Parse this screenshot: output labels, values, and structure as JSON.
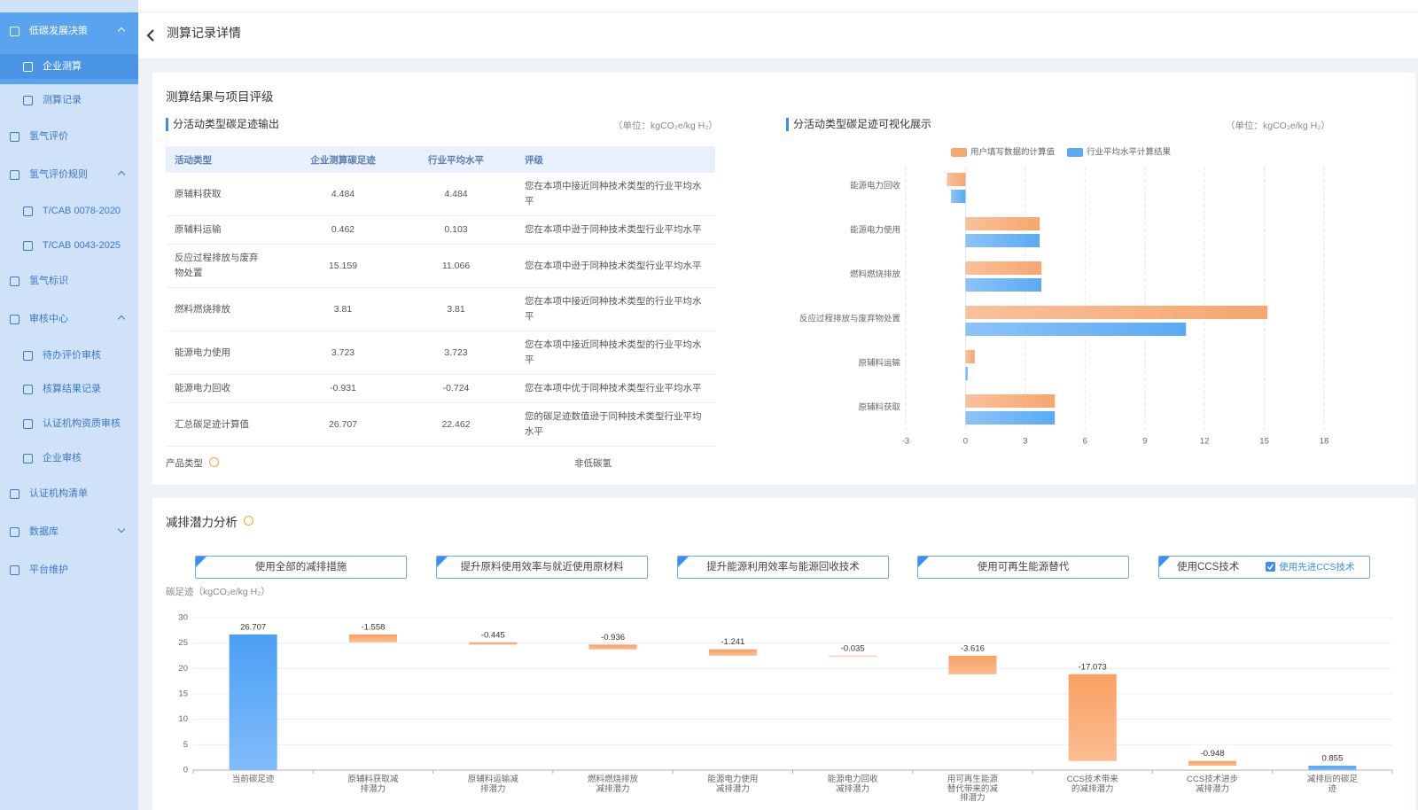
{
  "sidebar": {
    "items": [
      "低碳发展决策",
      "企业测算",
      "测算记录",
      "氢气评价",
      "氢气评价规则",
      "T/CAB 0078-2020",
      "T/CAB 0043-2025",
      "氢气标识",
      "审核中心",
      "待办评价审核",
      "核算结果记录",
      "认证机构资质审核",
      "企业审核",
      "认证机构清单",
      "数据库",
      "平台维护"
    ]
  },
  "header": {
    "title": "测算记录详情"
  },
  "results": {
    "title": "测算结果与项目评级",
    "table": {
      "title": "分活动类型碳足迹输出",
      "unit": "（单位：kgCO₂e/kg H₂）",
      "headers": [
        "活动类型",
        "企业测算碳足迹",
        "行业平均水平",
        "评级"
      ],
      "rows": [
        [
          "原辅料获取",
          4.484,
          4.484,
          "您在本项中接近同种技术类型的行业平均水平"
        ],
        [
          "原辅料运输",
          0.462,
          0.103,
          "您在本项中逊于同种技术类型行业平均水平"
        ],
        [
          "反应过程排放与废弃物处置",
          15.159,
          11.066,
          "您在本项中逊于同种技术类型行业平均水平"
        ],
        [
          "燃料燃烧排放",
          3.81,
          3.81,
          "您在本项中接近同种技术类型的行业平均水平"
        ],
        [
          "能源电力使用",
          3.723,
          3.723,
          "您在本项中接近同种技术类型的行业平均水平"
        ],
        [
          "能源电力回收",
          -0.931,
          -0.724,
          "您在本项中优于同种技术类型行业平均水平"
        ],
        [
          "汇总碳足迹计算值",
          26.707,
          22.462,
          "您的碳足迹数值逊于同种技术类型行业平均水平"
        ]
      ]
    },
    "product_type": {
      "label": "产品类型",
      "value": "非低碳氢"
    }
  },
  "reduction": {
    "title": "减排潜力分析",
    "buttons": [
      "使用全部的减排措施",
      "提升原料使用效率与就近使用原材料",
      "提升能源利用效率与能源回收技术",
      "使用可再生能源替代",
      "使用CCS技术"
    ],
    "checkbox": "使用先进CCS技术"
  },
  "chart_data": [
    {
      "type": "bar",
      "orientation": "horizontal",
      "title": "分活动类型碳足迹可视化展示",
      "unit": "（单位：kgCO₂e/kg H₂）",
      "categories": [
        "能源电力回收",
        "能源电力使用",
        "燃料燃烧排放",
        "反应过程排放与废弃物处置",
        "原辅料运输",
        "原辅料获取"
      ],
      "series": [
        {
          "name": "用户填写数据的计算值",
          "color": "#f7a66f",
          "values": [
            -0.931,
            3.723,
            3.81,
            15.159,
            0.462,
            4.484
          ]
        },
        {
          "name": "行业平均水平计算结果",
          "color": "#5aaaf5",
          "values": [
            -0.724,
            3.723,
            3.81,
            11.066,
            0.103,
            4.484
          ]
        }
      ],
      "xlim": [
        -3,
        18
      ],
      "xticks": [
        -3,
        0,
        3,
        6,
        9,
        12,
        15,
        18
      ],
      "grid": true,
      "legend": "top"
    },
    {
      "type": "waterfall",
      "y_label": "碳足迹（kgCO₂e/kg H₂）",
      "categories": [
        "当前碳足迹",
        "原辅料获取减排潜力",
        "原辅料运输减排潜力",
        "燃料燃烧排放减排潜力",
        "能源电力使用减排潜力",
        "能源电力回收减排潜力",
        "用可再生能源替代带来的减排潜力",
        "CCS技术带来的减排潜力",
        "CCS技术进步减排潜力",
        "减排后的碳足迹"
      ],
      "values": [
        26.707,
        -1.558,
        -0.445,
        -0.936,
        -1.241,
        -0.035,
        -3.616,
        -17.073,
        -0.948,
        0.855
      ],
      "total_color": "#4b9ff6",
      "delta_color": "#f9a063",
      "ylim": [
        0,
        30
      ],
      "yticks": [
        0,
        5,
        10,
        15,
        20,
        25,
        30
      ],
      "grid": true
    }
  ]
}
